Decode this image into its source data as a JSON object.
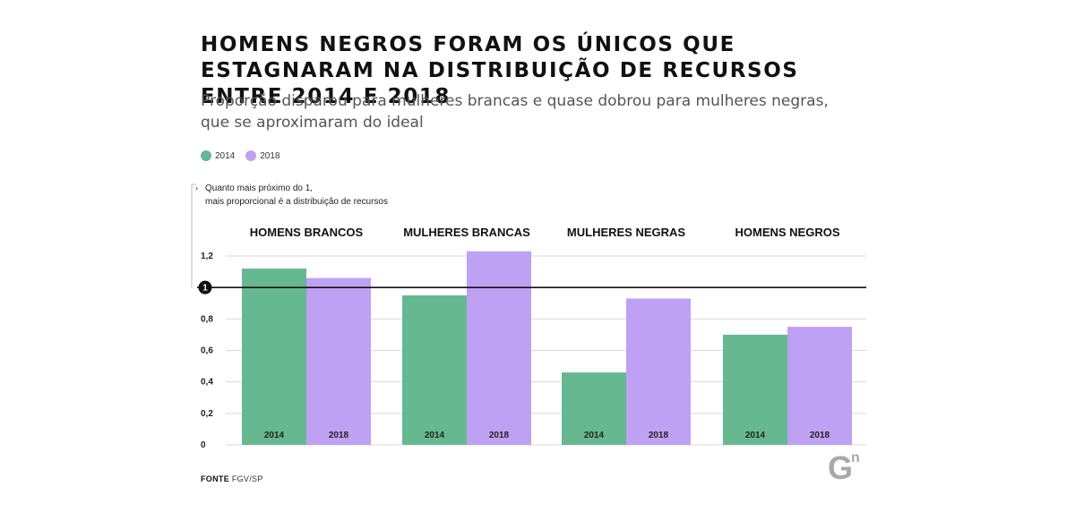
{
  "header": {
    "title": "HOMENS NEGROS FORAM OS ÚNICOS QUE ESTAGNARAM NA DISTRIBUIÇÃO DE RECURSOS ENTRE 2014 E 2018",
    "subtitle": "Proporção disparou para mulheres brancas e quase dobrou para mulheres negras, que se aproximaram do ideal"
  },
  "colors": {
    "series_2014": "#66b891",
    "series_2018": "#bea1f2",
    "reference_line": "#111111",
    "grid": "#d9d9d9"
  },
  "annotation": {
    "line1": "Quanto mais próximo do 1,",
    "line2": "mais proporcional é a distribuição de recursos",
    "reference_label": "1"
  },
  "source": {
    "label": "FONTE",
    "value": "FGV/SP"
  },
  "logo": {
    "icon": "gn-logo-icon",
    "text": "G",
    "superscript": "n"
  },
  "chart_data": {
    "type": "bar",
    "categories": [
      "HOMENS BRANCOS",
      "MULHERES BRANCAS",
      "MULHERES NEGRAS",
      "HOMENS NEGROS"
    ],
    "series": [
      {
        "name": "2014",
        "values": [
          1.12,
          0.95,
          0.46,
          0.7
        ]
      },
      {
        "name": "2018",
        "values": [
          1.06,
          1.23,
          0.93,
          0.75
        ]
      }
    ],
    "yticks": [
      0,
      0.2,
      0.4,
      0.6,
      0.8,
      1,
      1.2
    ],
    "ytick_labels": [
      "0",
      "0,2",
      "0,4",
      "0,6",
      "0,8",
      "1",
      "1,2"
    ],
    "ylim": [
      0,
      1.2
    ],
    "reference_value": 1,
    "grid": true,
    "legend_position": "top-left"
  }
}
